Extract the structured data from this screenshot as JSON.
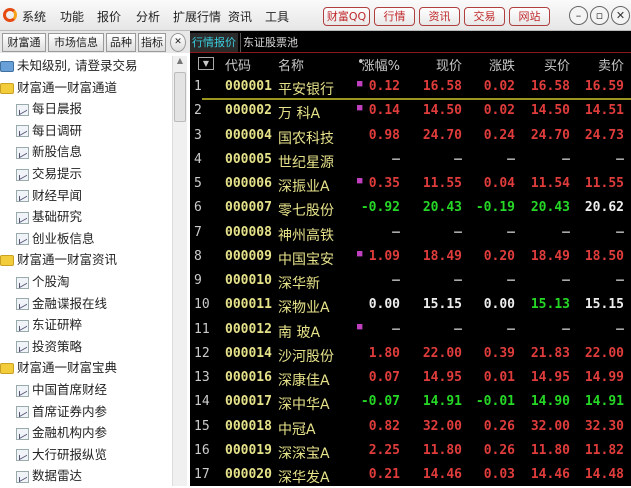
{
  "titlebar": {
    "menus": [
      "系统",
      "功能",
      "报价",
      "分析",
      "扩展行情",
      "资讯",
      "工具"
    ],
    "buttons": [
      "财富QQ",
      "行情",
      "资讯",
      "交易",
      "网站"
    ],
    "window_controls": [
      "minimize-icon",
      "restore-icon",
      "close-icon"
    ]
  },
  "left_tabs": [
    "财富通",
    "市场信息",
    "品种",
    "指标"
  ],
  "sidebar": {
    "items": [
      {
        "type": "account",
        "label": "未知级别, 请登录交易"
      },
      {
        "type": "folder",
        "label": "财富通一财富通道"
      },
      {
        "type": "leaf",
        "label": "每日晨报"
      },
      {
        "type": "leaf",
        "label": "每日调研"
      },
      {
        "type": "leaf",
        "label": "新股信息"
      },
      {
        "type": "leaf",
        "label": "交易提示"
      },
      {
        "type": "leaf",
        "label": "财经早闻"
      },
      {
        "type": "leaf",
        "label": "基础研究"
      },
      {
        "type": "leaf",
        "label": "创业板信息"
      },
      {
        "type": "folder",
        "label": "财富通一财富资讯"
      },
      {
        "type": "leaf",
        "label": "个股淘"
      },
      {
        "type": "leaf",
        "label": "金融谍报在线"
      },
      {
        "type": "leaf",
        "label": "东证研粹"
      },
      {
        "type": "leaf",
        "label": "投资策略"
      },
      {
        "type": "folder",
        "label": "财富通一财富宝典"
      },
      {
        "type": "leaf",
        "label": "中国首席财经"
      },
      {
        "type": "leaf",
        "label": "首席证券内参"
      },
      {
        "type": "leaf",
        "label": "金融机构内参"
      },
      {
        "type": "leaf",
        "label": "大行研报纵览"
      },
      {
        "type": "leaf",
        "label": "数据雷达"
      }
    ]
  },
  "main": {
    "tabs": [
      "行情报价",
      "东证股票池"
    ],
    "active_tab": 0,
    "headers": [
      "代码",
      "名称",
      "•",
      "涨幅%",
      "现价",
      "涨跌",
      "买价",
      "卖价"
    ],
    "colors": {
      "up": "#e03c3c",
      "down": "#26d826",
      "flat": "#eeeeee"
    },
    "rows": [
      [
        "1",
        "000001",
        "平安银行",
        true,
        "0.12",
        "16.58",
        "0.02",
        "16.58",
        "16.59"
      ],
      [
        "2",
        "000002",
        "万 科A",
        true,
        "0.14",
        "14.50",
        "0.02",
        "14.50",
        "14.51"
      ],
      [
        "3",
        "000004",
        "国农科技",
        false,
        "0.98",
        "24.70",
        "0.24",
        "24.70",
        "24.73"
      ],
      [
        "4",
        "000005",
        "世纪星源",
        false,
        "—",
        "—",
        "—",
        "—",
        "—"
      ],
      [
        "5",
        "000006",
        "深振业A",
        true,
        "0.35",
        "11.55",
        "0.04",
        "11.54",
        "11.55"
      ],
      [
        "6",
        "000007",
        "零七股份",
        false,
        "-0.92",
        "20.43",
        "-0.19",
        "20.43",
        "20.62"
      ],
      [
        "7",
        "000008",
        "神州高铁",
        false,
        "—",
        "—",
        "—",
        "—",
        "—"
      ],
      [
        "8",
        "000009",
        "中国宝安",
        true,
        "1.09",
        "18.49",
        "0.20",
        "18.49",
        "18.50"
      ],
      [
        "9",
        "000010",
        "深华新",
        false,
        "—",
        "—",
        "—",
        "—",
        "—"
      ],
      [
        "10",
        "000011",
        "深物业A",
        false,
        "0.00",
        "15.15",
        "0.00",
        "15.13",
        "15.15"
      ],
      [
        "11",
        "000012",
        "南 玻A",
        true,
        "—",
        "—",
        "—",
        "—",
        "—"
      ],
      [
        "12",
        "000014",
        "沙河股份",
        false,
        "1.80",
        "22.00",
        "0.39",
        "21.83",
        "22.00"
      ],
      [
        "13",
        "000016",
        "深康佳A",
        false,
        "0.07",
        "14.95",
        "0.01",
        "14.95",
        "14.99"
      ],
      [
        "14",
        "000017",
        "深中华A",
        false,
        "-0.07",
        "14.91",
        "-0.01",
        "14.90",
        "14.91"
      ],
      [
        "15",
        "000018",
        "中冠A",
        false,
        "0.82",
        "32.00",
        "0.26",
        "32.00",
        "32.30"
      ],
      [
        "16",
        "000019",
        "深深宝A",
        false,
        "2.25",
        "11.80",
        "0.26",
        "11.80",
        "11.82"
      ],
      [
        "17",
        "000020",
        "深华发A",
        false,
        "0.21",
        "14.46",
        "0.03",
        "14.46",
        "14.48"
      ]
    ]
  }
}
